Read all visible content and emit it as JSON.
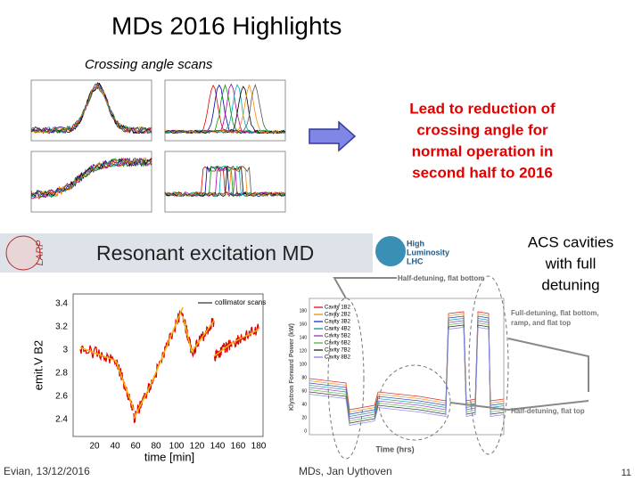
{
  "title": "MDs 2016 Highlights",
  "subtitle": "Crossing angle scans",
  "callout": [
    "Lead to reduction of",
    "crossing angle for",
    "normal operation in",
    "second half to 2016"
  ],
  "acs_note": [
    "ACS cavities",
    "with full",
    "detuning"
  ],
  "banner": {
    "logo_left": "LARP",
    "title": "Resonant excitation MD",
    "logo_right": [
      "High",
      "Luminosity",
      "LHC"
    ]
  },
  "emittance_plot": {
    "y_label": "emit.V B2",
    "x_label": "time [min]",
    "legend": "collimator scans",
    "yticks": [
      2.4,
      2.6,
      2.8,
      3,
      3.2,
      3.4
    ],
    "xticks": [
      20,
      40,
      60,
      80,
      100,
      120,
      140,
      160,
      180
    ]
  },
  "klystron_plot": {
    "y_label": "Klystron Forward Power (kW)",
    "x_label": "Time (hrs)",
    "yticks": [
      0,
      20,
      40,
      60,
      80,
      100,
      120,
      140,
      160,
      180
    ],
    "legend": [
      "Cavity 1B2",
      "Cavity 2B2",
      "Cavity 3B2",
      "Cavity 4B2",
      "Cavity 5B2",
      "Cavity 6B2",
      "Cavity 7B2",
      "Cavity 8B2"
    ],
    "annotations": [
      "Half-detuning, flat bottom",
      "Full-detuning, flat bottom, ramp, and flat top",
      "Half-detuning, flat top"
    ]
  },
  "footer": {
    "left": "Evian, 13/12/2016",
    "center": "MDs, Jan Uythoven",
    "page": 11
  }
}
